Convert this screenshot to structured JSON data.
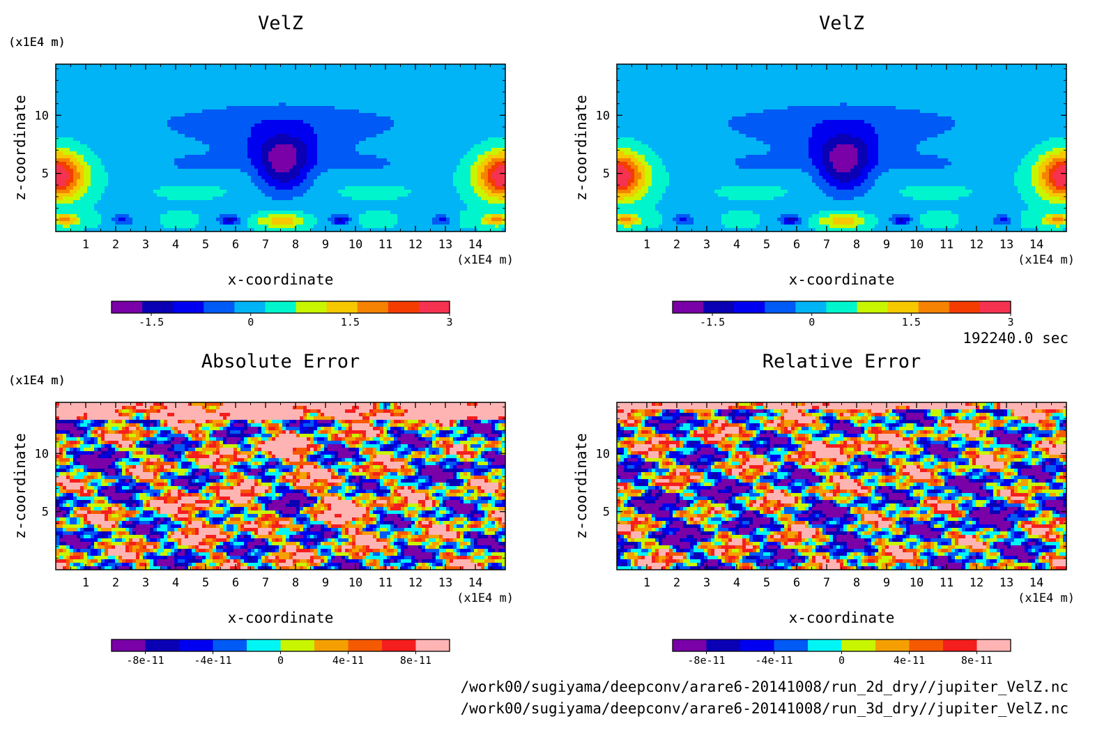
{
  "chart_data": [
    {
      "type": "heatmap",
      "title": "VelZ",
      "xlabel": "x-coordinate",
      "ylabel": "z-coordinate",
      "x_unit": "(x1E4 m)",
      "y_unit": "(x1E4 m)",
      "xlim": [
        0,
        15
      ],
      "ylim": [
        0,
        14.4
      ],
      "x_ticks": [
        "1",
        "2",
        "3",
        "4",
        "5",
        "6",
        "7",
        "8",
        "9",
        "10",
        "11",
        "12",
        "13",
        "14"
      ],
      "y_ticks": [
        "5",
        "10"
      ],
      "colorbar": {
        "colors": [
          "#7a00a8",
          "#0a00b4",
          "#0000f0",
          "#005af5",
          "#00b4f5",
          "#00f5cd",
          "#c8f500",
          "#f5c800",
          "#f58200",
          "#f53c00",
          "#f53250"
        ],
        "tick_labels": [
          "-1.5",
          "0",
          "1.5",
          "3"
        ],
        "tick_values": [
          -1.5,
          0,
          1.5,
          3
        ],
        "range": [
          -2.1,
          3.0
        ]
      },
      "field": "velz"
    },
    {
      "type": "heatmap",
      "title": "VelZ",
      "xlabel": "x-coordinate",
      "ylabel": "z-coordinate",
      "x_unit": "(x1E4 m)",
      "y_unit": "(x1E4 m)",
      "xlim": [
        0,
        15
      ],
      "ylim": [
        0,
        14.4
      ],
      "x_ticks": [
        "1",
        "2",
        "3",
        "4",
        "5",
        "6",
        "7",
        "8",
        "9",
        "10",
        "11",
        "12",
        "13",
        "14"
      ],
      "y_ticks": [
        "5",
        "10"
      ],
      "colorbar": {
        "colors": [
          "#7a00a8",
          "#0a00b4",
          "#0000f0",
          "#005af5",
          "#00b4f5",
          "#00f5cd",
          "#c8f500",
          "#f5c800",
          "#f58200",
          "#f53c00",
          "#f53250"
        ],
        "tick_labels": [
          "-1.5",
          "0",
          "1.5",
          "3"
        ],
        "tick_values": [
          -1.5,
          0,
          1.5,
          3
        ],
        "range": [
          -2.1,
          3.0
        ]
      },
      "field": "velz"
    },
    {
      "type": "heatmap",
      "title": "Absolute Error",
      "xlabel": "x-coordinate",
      "ylabel": "z-coordinate",
      "x_unit": "(x1E4 m)",
      "y_unit": "(x1E4 m)",
      "xlim": [
        0,
        15
      ],
      "ylim": [
        0,
        14.4
      ],
      "x_ticks": [
        "1",
        "2",
        "3",
        "4",
        "5",
        "6",
        "7",
        "8",
        "9",
        "10",
        "11",
        "12",
        "13",
        "14"
      ],
      "y_ticks": [
        "5",
        "10"
      ],
      "colorbar": {
        "colors": [
          "#7a00a8",
          "#0a00b4",
          "#0000f0",
          "#005af5",
          "#00f5f5",
          "#c8f500",
          "#f5a000",
          "#f55a00",
          "#f51e1e",
          "#ffb4b4"
        ],
        "tick_labels": [
          "-8e-11",
          "-4e-11",
          "0",
          "4e-11",
          "8e-11"
        ],
        "tick_values": [
          -8e-11,
          -4e-11,
          0,
          4e-11,
          8e-11
        ],
        "range": [
          -1e-10,
          1e-10
        ]
      },
      "field": "abs"
    },
    {
      "type": "heatmap",
      "title": "Relative Error",
      "xlabel": "x-coordinate",
      "ylabel": "z-coordinate",
      "x_unit": "(x1E4 m)",
      "y_unit": "(x1E4 m)",
      "xlim": [
        0,
        15
      ],
      "ylim": [
        0,
        14.4
      ],
      "x_ticks": [
        "1",
        "2",
        "3",
        "4",
        "5",
        "6",
        "7",
        "8",
        "9",
        "10",
        "11",
        "12",
        "13",
        "14"
      ],
      "y_ticks": [
        "5",
        "10"
      ],
      "colorbar": {
        "colors": [
          "#7a00a8",
          "#0a00b4",
          "#0000f0",
          "#005af5",
          "#00f5f5",
          "#c8f500",
          "#f5a000",
          "#f55a00",
          "#f51e1e",
          "#ffb4b4"
        ],
        "tick_labels": [
          "-8e-11",
          "-4e-11",
          "0",
          "4e-11",
          "8e-11"
        ],
        "tick_values": [
          -8e-11,
          -4e-11,
          0,
          4e-11,
          8e-11
        ],
        "range": [
          -1e-10,
          1e-10
        ]
      },
      "field": "rel"
    }
  ],
  "time_label": "192240.0 sec",
  "files": [
    "/work00/sugiyama/deepconv/arare6-20141008/run_2d_dry//jupiter_VelZ.nc",
    "/work00/sugiyama/deepconv/arare6-20141008/run_3d_dry//jupiter_VelZ.nc"
  ]
}
